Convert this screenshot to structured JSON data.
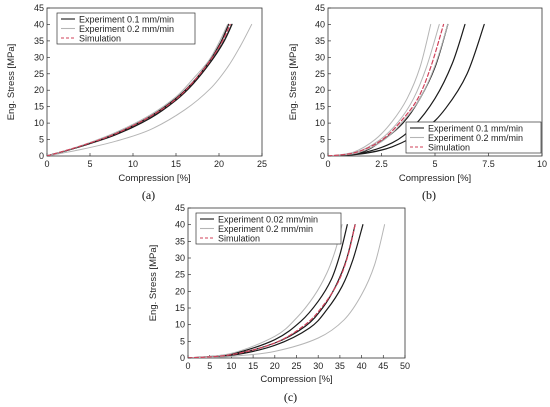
{
  "chart_data": [
    {
      "id": "a",
      "panel_label": "(a)",
      "type": "line",
      "xlabel": "Compression [%]",
      "ylabel": "Eng. Stress [MPa]",
      "xlim": [
        0,
        25
      ],
      "ylim": [
        0,
        45
      ],
      "xticks": [
        0,
        5,
        10,
        15,
        20,
        25
      ],
      "yticks": [
        0,
        5,
        10,
        15,
        20,
        25,
        30,
        35,
        40,
        45
      ],
      "grid": false,
      "legend_position": "top-left",
      "legend": [
        {
          "label": "Experiment 0.1 mm/min",
          "color": "#1a1a1a",
          "dash": "solid"
        },
        {
          "label": "Experiment 0.2 mm/min",
          "color": "#b5b5b5",
          "dash": "solid"
        },
        {
          "label": "Simulation",
          "color": "#d0415a",
          "dash": "dashed"
        }
      ],
      "series": [
        {
          "color": "#1a1a1a",
          "width": 1.4,
          "dash": "solid",
          "x": [
            0,
            4,
            8,
            12,
            15,
            17,
            19,
            20.5,
            21.5
          ],
          "y": [
            0,
            3.0,
            6.5,
            11.5,
            17.0,
            22.0,
            28.5,
            34.5,
            40
          ]
        },
        {
          "color": "#1a1a1a",
          "width": 1.4,
          "dash": "solid",
          "x": [
            0,
            4,
            8,
            12,
            15,
            17,
            18.8,
            20.2,
            21.1
          ],
          "y": [
            0,
            3.0,
            6.8,
            12.0,
            17.5,
            22.5,
            28.5,
            34.5,
            40
          ]
        },
        {
          "color": "#b5b5b5",
          "width": 1,
          "dash": "solid",
          "x": [
            0,
            4,
            8,
            12,
            16,
            19,
            21,
            22.5,
            23.8
          ],
          "y": [
            0,
            2.0,
            4.5,
            8.0,
            14.0,
            20.5,
            27.0,
            33.5,
            40
          ]
        },
        {
          "color": "#b5b5b5",
          "width": 1,
          "dash": "solid",
          "x": [
            0,
            4,
            8,
            12,
            15,
            17,
            18.8,
            20,
            21
          ],
          "y": [
            0,
            3.2,
            7.2,
            12.5,
            18.0,
            23.5,
            29.0,
            34.5,
            40
          ]
        },
        {
          "color": "#d0415a",
          "width": 1.2,
          "dash": "dashed",
          "x": [
            0,
            4,
            8,
            12,
            15,
            17,
            18.9,
            20.3,
            21.3
          ],
          "y": [
            0,
            3.1,
            6.8,
            12.0,
            17.3,
            22.5,
            28.7,
            34.5,
            40
          ]
        }
      ]
    },
    {
      "id": "b",
      "panel_label": "(b)",
      "type": "line",
      "xlabel": "Compression [%]",
      "ylabel": "Eng. Stress [MPa]",
      "xlim": [
        0,
        10
      ],
      "ylim": [
        0,
        45
      ],
      "xticks": [
        0,
        2.5,
        5,
        7.5,
        10
      ],
      "xtick_labels": [
        "0",
        "2.5",
        "5",
        "7.5",
        "10"
      ],
      "yticks": [
        0,
        5,
        10,
        15,
        20,
        25,
        30,
        35,
        40,
        45
      ],
      "grid": false,
      "legend_position": "bottom-right",
      "legend": [
        {
          "label": "Experiment 0.1 mm/min",
          "color": "#1a1a1a",
          "dash": "solid"
        },
        {
          "label": "Experiment 0.2 mm/min",
          "color": "#b5b5b5",
          "dash": "solid"
        },
        {
          "label": "Simulation",
          "color": "#d0415a",
          "dash": "dashed"
        }
      ],
      "series": [
        {
          "color": "#1a1a1a",
          "width": 1.2,
          "dash": "solid",
          "x": [
            0,
            1.5,
            3,
            4,
            5,
            5.8,
            6.4
          ],
          "y": [
            0,
            0.8,
            4.0,
            9.0,
            17.5,
            28.0,
            40
          ]
        },
        {
          "color": "#1a1a1a",
          "width": 1.2,
          "dash": "solid",
          "x": [
            0,
            1.5,
            3,
            4.5,
            5.5,
            6.5,
            7.3
          ],
          "y": [
            0,
            0.6,
            2.8,
            8.0,
            14.5,
            25.0,
            40
          ]
        },
        {
          "color": "#1a1a1a",
          "width": 1.2,
          "dash": "solid",
          "x": [
            0,
            1.5,
            2.5,
            3.5,
            4.3,
            5.0,
            5.6
          ],
          "y": [
            0,
            1.0,
            4.5,
            10.0,
            17.5,
            27.0,
            40
          ]
        },
        {
          "color": "#b5b5b5",
          "width": 1,
          "dash": "solid",
          "x": [
            0,
            1.2,
            2.2,
            3.0,
            3.7,
            4.3,
            4.8
          ],
          "y": [
            0,
            1.2,
            5.0,
            10.5,
            17.5,
            27.0,
            40
          ]
        },
        {
          "color": "#b5b5b5",
          "width": 1,
          "dash": "solid",
          "x": [
            0,
            1.3,
            2.4,
            3.3,
            4.0,
            4.6,
            5.2
          ],
          "y": [
            0,
            1.1,
            4.8,
            10.5,
            17.5,
            27.0,
            40
          ]
        },
        {
          "color": "#b5b5b5",
          "width": 1,
          "dash": "solid",
          "x": [
            0,
            1.4,
            2.6,
            3.5,
            4.3,
            5.0,
            5.6
          ],
          "y": [
            0,
            1.0,
            4.8,
            10.5,
            17.5,
            27.5,
            40
          ]
        },
        {
          "color": "#d0415a",
          "width": 1.2,
          "dash": "dashed",
          "x": [
            0,
            1.3,
            2.5,
            3.4,
            4.2,
            4.8,
            5.4
          ],
          "y": [
            0,
            1.1,
            4.8,
            10.5,
            17.5,
            27.0,
            40
          ]
        }
      ]
    },
    {
      "id": "c",
      "panel_label": "(c)",
      "type": "line",
      "xlabel": "Compression [%]",
      "ylabel": "Eng. Stress [MPa]",
      "xlim": [
        0,
        50
      ],
      "ylim": [
        0,
        45
      ],
      "xticks": [
        0,
        5,
        10,
        15,
        20,
        25,
        30,
        35,
        40,
        45,
        50
      ],
      "yticks": [
        0,
        5,
        10,
        15,
        20,
        25,
        30,
        35,
        40,
        45
      ],
      "grid": false,
      "legend_position": "top-left",
      "legend": [
        {
          "label": "Experiment 0.02 mm/min",
          "color": "#1a1a1a",
          "dash": "solid"
        },
        {
          "label": "Experiment 0.2 mm/min",
          "color": "#b5b5b5",
          "dash": "solid"
        },
        {
          "label": "Simulation",
          "color": "#d0415a",
          "dash": "dashed"
        }
      ],
      "series": [
        {
          "color": "#1a1a1a",
          "width": 1.2,
          "dash": "solid",
          "x": [
            0,
            10,
            20,
            26,
            30,
            33,
            35,
            36.7
          ],
          "y": [
            0,
            1.2,
            5.5,
            11.0,
            17.0,
            23.5,
            31.0,
            40
          ]
        },
        {
          "color": "#1a1a1a",
          "width": 1.2,
          "dash": "solid",
          "x": [
            0,
            10,
            20,
            27,
            31,
            34,
            36.5,
            38.5
          ],
          "y": [
            0,
            1.0,
            4.5,
            9.5,
            15.0,
            21.5,
            29.5,
            40
          ]
        },
        {
          "color": "#1a1a1a",
          "width": 1.2,
          "dash": "solid",
          "x": [
            0,
            10,
            20,
            28,
            32,
            35.5,
            38,
            40.3
          ],
          "y": [
            0,
            0.8,
            3.8,
            9.0,
            14.5,
            21.5,
            29.5,
            40
          ]
        },
        {
          "color": "#b5b5b5",
          "width": 1,
          "dash": "solid",
          "x": [
            0,
            10,
            20,
            25,
            29,
            32,
            34,
            35.5
          ],
          "y": [
            0,
            1.4,
            6.5,
            12.0,
            18.5,
            25.5,
            32.5,
            40
          ]
        },
        {
          "color": "#b5b5b5",
          "width": 1,
          "dash": "solid",
          "x": [
            0,
            10,
            20,
            30,
            36,
            40,
            43,
            45.3
          ],
          "y": [
            0,
            0.5,
            2.0,
            6.0,
            11.5,
            19.0,
            28.0,
            40
          ]
        },
        {
          "color": "#d0415a",
          "width": 1.2,
          "dash": "dashed",
          "x": [
            0,
            10,
            20,
            27,
            31,
            34.5,
            36.8,
            38.5
          ],
          "y": [
            0,
            1.0,
            4.5,
            10.0,
            15.5,
            22.5,
            30.5,
            40
          ]
        }
      ]
    }
  ]
}
